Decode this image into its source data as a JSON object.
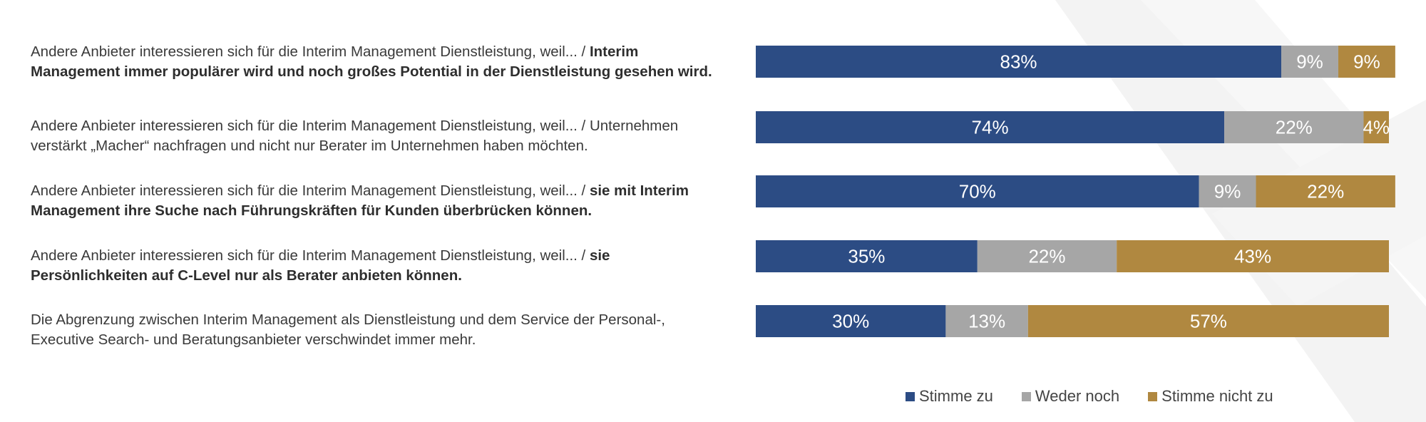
{
  "chart_data": {
    "type": "bar",
    "orientation": "horizontal",
    "stacked": true,
    "percent": true,
    "xlim": [
      0,
      100
    ],
    "categories": [
      {
        "prefix": "Andere Anbieter interessieren sich für die Interim Management Dienstleistung, weil... / ",
        "emphasis": "Interim Management immer populärer wird und noch großes Potential in der Dienstleistung gesehen wird.",
        "suffix": ""
      },
      {
        "prefix": "Andere Anbieter interessieren sich für die Interim Management Dienstleistung, weil... / Unternehmen verstärkt „Macher“ nachfragen und nicht nur Berater im Unternehmen haben möchten.",
        "emphasis": "",
        "suffix": ""
      },
      {
        "prefix": "Andere Anbieter interessieren sich für die Interim Management Dienstleistung, weil... / ",
        "emphasis": "sie mit Interim Management ihre Suche nach Führungskräften für Kunden überbrücken können.",
        "suffix": ""
      },
      {
        "prefix": "Andere Anbieter interessieren sich für die Interim Management Dienstleistung, weil... / ",
        "emphasis": "sie Persönlichkeiten auf C-Level nur als Berater anbieten können.",
        "suffix": ""
      },
      {
        "prefix": "Die Abgrenzung zwischen Interim Management als Dienstleistung und dem Service der Personal-, Executive Search- und Beratungsanbieter verschwindet immer mehr.",
        "emphasis": "",
        "suffix": ""
      }
    ],
    "series": [
      {
        "name": "Stimme zu",
        "color": "#2c4c84",
        "values": [
          83,
          74,
          70,
          35,
          30
        ],
        "labels": [
          "83%",
          "74%",
          "70%",
          "35%",
          "30%"
        ]
      },
      {
        "name": "Weder noch",
        "color": "#a6a6a6",
        "values": [
          9,
          22,
          9,
          22,
          13
        ],
        "labels": [
          "9%",
          "22%",
          "9%",
          "22%",
          "13%"
        ]
      },
      {
        "name": "Stimme nicht zu",
        "color": "#b08840",
        "values": [
          9,
          4,
          22,
          43,
          57
        ],
        "labels": [
          "9%",
          "4%",
          "22%",
          "43%",
          "57%"
        ]
      }
    ],
    "legend_position": "bottom-right"
  }
}
